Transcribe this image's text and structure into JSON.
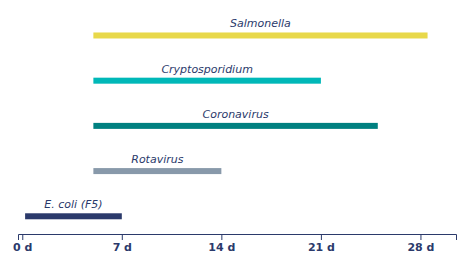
{
  "chart_data": {
    "type": "bar",
    "orientation": "horizontal",
    "categories": [
      "Salmonella",
      "Cryptosporidium",
      "Coronavirus",
      "Rotavirus",
      "E. coli (F5)"
    ],
    "starts": [
      5,
      5,
      5,
      5,
      0.2
    ],
    "values": [
      28.5,
      21.0,
      25.0,
      14.0,
      7.0
    ],
    "colors": [
      "#E8D84A",
      "#00B8B8",
      "#008080",
      "#8899AA",
      "#2B3A6B"
    ],
    "xlim": [
      -0.3,
      30.5
    ],
    "xticks": [
      {
        "value": 0,
        "label": "0 d"
      },
      {
        "value": 7,
        "label": "7 d"
      },
      {
        "value": 14,
        "label": "14 d"
      },
      {
        "value": 21,
        "label": "21 d"
      },
      {
        "value": 28,
        "label": "28 d"
      }
    ],
    "grid": false,
    "tick_labels": "x"
  }
}
